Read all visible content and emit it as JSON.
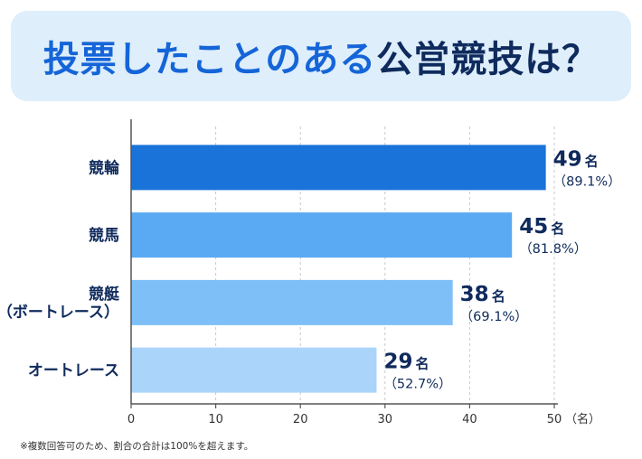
{
  "title": {
    "main": "投票したことのある",
    "accent": "公営競技は？"
  },
  "chart_data": {
    "type": "bar",
    "orientation": "horizontal",
    "categories": [
      "競輪",
      "競馬",
      "競艇\n（ボートレース）",
      "オートレース"
    ],
    "values": [
      49,
      45,
      38,
      29
    ],
    "value_suffix": "名",
    "percent_labels": [
      "（89.1%）",
      "（81.8%）",
      "（69.1%）",
      "（52.7%）"
    ],
    "xlim": [
      0,
      50
    ],
    "xticks": [
      0,
      10,
      20,
      30,
      40,
      50
    ],
    "x_unit_label": "（名）",
    "grid": true,
    "bar_colors": [
      "#1a73d9",
      "#5aaaf3",
      "#7ebff7",
      "#aad4fa"
    ]
  },
  "colors": {
    "label_text": "#0f2a5c",
    "axis": "#555555",
    "grid": "#c8c8c8"
  },
  "footnote": "※複数回答可のため、割合の合計は100%を超えます。"
}
